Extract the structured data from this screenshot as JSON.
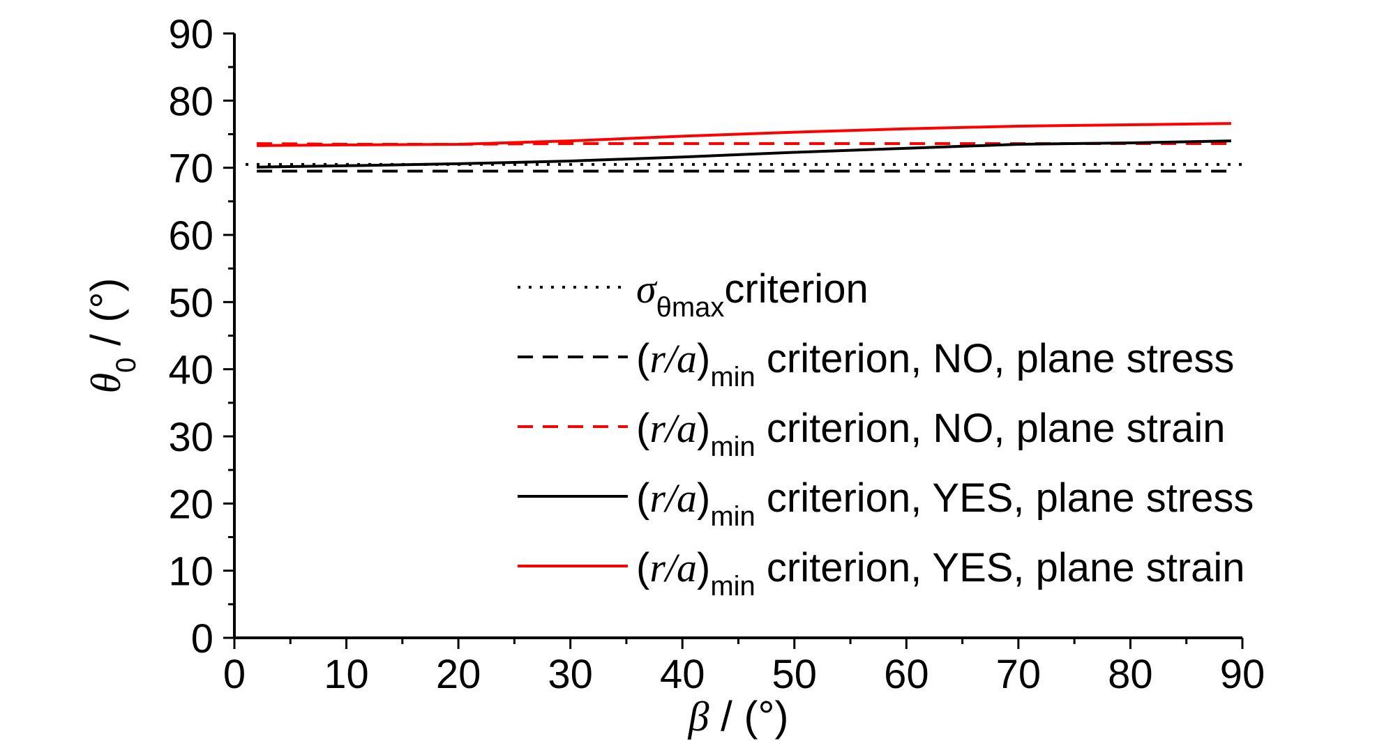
{
  "chart_data": {
    "type": "line",
    "xlabel": {
      "symbol": "β",
      "unit": " / (°)"
    },
    "ylabel": {
      "symbol": "θ",
      "sub": "0",
      "unit": " / (°)"
    },
    "xlim": [
      0,
      90
    ],
    "ylim": [
      0,
      90
    ],
    "xticks": [
      "0",
      "10",
      "20",
      "30",
      "40",
      "50",
      "60",
      "70",
      "80",
      "90"
    ],
    "yticks": [
      "0",
      "10",
      "20",
      "30",
      "40",
      "50",
      "60",
      "70",
      "80",
      "90"
    ],
    "grid": false,
    "legend_position": "center-right",
    "series": [
      {
        "id": "sigma",
        "name_parts": {
          "sym": "σ",
          "sub": "θmax",
          "rest": "criterion"
        },
        "color": "#000000",
        "style": "dotted",
        "x": [
          1,
          90
        ],
        "y": [
          70.5,
          70.5
        ]
      },
      {
        "id": "no-stress",
        "name_parts": {
          "pre": "(",
          "sym": "r/a",
          "close": ")",
          "sub": "min",
          "rest": " criterion, NO, plane stress"
        },
        "color": "#000000",
        "style": "dashed",
        "x": [
          2,
          10,
          20,
          30,
          40,
          50,
          60,
          70,
          80,
          89
        ],
        "y": [
          69.5,
          69.5,
          69.5,
          69.5,
          69.5,
          69.5,
          69.5,
          69.5,
          69.5,
          69.5
        ]
      },
      {
        "id": "no-strain",
        "name_parts": {
          "pre": "(",
          "sym": "r/a",
          "close": ")",
          "sub": "min",
          "rest": " criterion, NO, plane strain"
        },
        "color": "#ff0000",
        "style": "dashed",
        "x": [
          2,
          10,
          20,
          30,
          40,
          50,
          60,
          70,
          80,
          89
        ],
        "y": [
          73.6,
          73.5,
          73.5,
          73.6,
          73.6,
          73.6,
          73.6,
          73.6,
          73.6,
          73.6
        ]
      },
      {
        "id": "yes-stress",
        "name_parts": {
          "pre": "(",
          "sym": "r/a",
          "close": ")",
          "sub": "min",
          "rest": " criterion, YES, plane stress"
        },
        "color": "#000000",
        "style": "solid",
        "x": [
          2,
          10,
          20,
          30,
          40,
          50,
          60,
          70,
          80,
          89
        ],
        "y": [
          70.1,
          70.3,
          70.6,
          71.0,
          71.6,
          72.3,
          72.9,
          73.5,
          73.7,
          74.0
        ]
      },
      {
        "id": "yes-strain",
        "name_parts": {
          "pre": "(",
          "sym": "r/a",
          "close": ")",
          "sub": "min",
          "rest": " criterion, YES, plane strain"
        },
        "color": "#ff0000",
        "style": "solid",
        "x": [
          2,
          10,
          20,
          30,
          40,
          50,
          60,
          70,
          80,
          89
        ],
        "y": [
          73.3,
          73.4,
          73.5,
          74.0,
          74.7,
          75.3,
          75.8,
          76.2,
          76.4,
          76.6
        ]
      }
    ]
  }
}
